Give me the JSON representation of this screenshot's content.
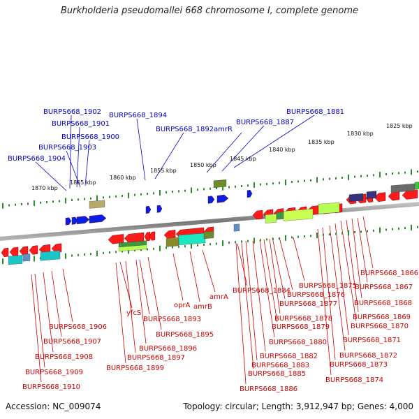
{
  "title": "Burkholderia pseudomallei 668 chromosome I, complete genome",
  "footer": {
    "accession": "Accession: NC_009074",
    "topology": "Topology: circular; Length: 3,912,947 bp; Genes: 4,000"
  },
  "scale_labels": [
    "1870 kbp",
    "1865 kbp",
    "1860 kbp",
    "1855 kbp",
    "1850 kbp",
    "1845 kbp",
    "1840 kbp",
    "1835 kbp",
    "1830 kbp",
    "1825 kbp"
  ],
  "top_labels": [
    "BURPS668_1902",
    "BURPS668_1901",
    "BURPS668_1900",
    "BURPS668_1903",
    "BURPS668_1904",
    "BURPS668_1894",
    "BURPS668_1892",
    "amrR",
    "BURPS668_1887",
    "BURPS668_1881"
  ],
  "bottom_labels": [
    "BURPS668_1906",
    "BURPS668_1907",
    "BURPS668_1908",
    "BURPS668_1909",
    "BURPS668_1910",
    "yfcS",
    "BURPS668_1893",
    "BURPS668_1895",
    "BURPS668_1896",
    "BURPS668_1897",
    "BURPS668_1899",
    "oprA",
    "amrB",
    "amrA",
    "BURPS668_1884",
    "BURPS668_1875",
    "BURPS668_1876",
    "BURPS668_1877",
    "BURPS668_1878",
    "BURPS668_1879",
    "BURPS668_1880",
    "BURPS668_1882",
    "BURPS668_1883",
    "BURPS668_1885",
    "BURPS668_1886",
    "BURPS668_1866",
    "BURPS668_1867",
    "BURPS668_1868",
    "BURPS668_1869",
    "BURPS668_1870",
    "BURPS668_1871",
    "BURPS668_1872",
    "BURPS668_1873",
    "BURPS668_1874"
  ],
  "colors": {
    "blue_label": "#0000cc",
    "red_label": "#cc0000",
    "gene_red": "#ff1a1a",
    "gene_blue": "#0a1ee6",
    "scale_green": "#2a8a2a",
    "backbone": "#777777"
  }
}
